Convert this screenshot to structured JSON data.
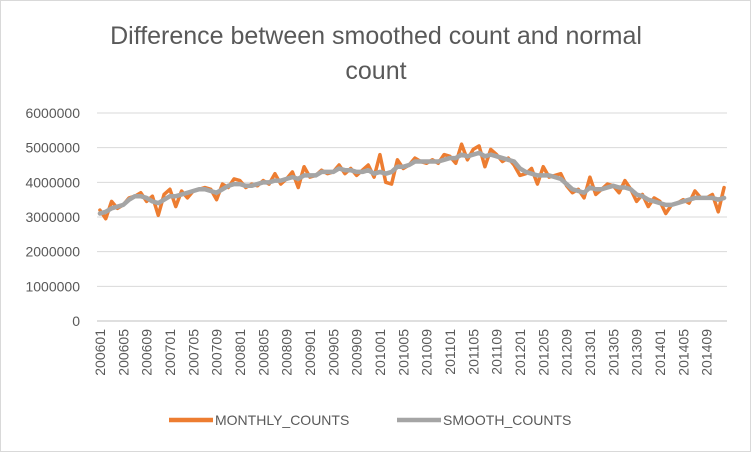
{
  "chart_data": {
    "type": "line",
    "title": "Difference between smoothed count and normal count",
    "title_lines": [
      "Difference between smoothed count and normal",
      "count"
    ],
    "xlabel": "",
    "ylabel": "",
    "ylim": [
      0,
      6000000
    ],
    "yticks": [
      0,
      1000000,
      2000000,
      3000000,
      4000000,
      5000000,
      6000000
    ],
    "ytick_labels": [
      "0",
      "1000000",
      "2000000",
      "3000000",
      "4000000",
      "5000000",
      "6000000"
    ],
    "x": [
      "200601",
      "200602",
      "200603",
      "200604",
      "200605",
      "200606",
      "200607",
      "200608",
      "200609",
      "200610",
      "200611",
      "200612",
      "200701",
      "200702",
      "200703",
      "200704",
      "200705",
      "200706",
      "200707",
      "200708",
      "200709",
      "200710",
      "200711",
      "200712",
      "200801",
      "200802",
      "200803",
      "200804",
      "200805",
      "200806",
      "200807",
      "200808",
      "200809",
      "200810",
      "200811",
      "200812",
      "200901",
      "200902",
      "200903",
      "200904",
      "200905",
      "200906",
      "200907",
      "200908",
      "200909",
      "200910",
      "200911",
      "200912",
      "201001",
      "201002",
      "201003",
      "201004",
      "201005",
      "201006",
      "201007",
      "201008",
      "201009",
      "201010",
      "201011",
      "201012",
      "201101",
      "201102",
      "201103",
      "201104",
      "201105",
      "201106",
      "201107",
      "201108",
      "201109",
      "201110",
      "201111",
      "201112",
      "201201",
      "201202",
      "201203",
      "201204",
      "201205",
      "201206",
      "201207",
      "201208",
      "201209",
      "201210",
      "201211",
      "201212",
      "201301",
      "201302",
      "201303",
      "201304",
      "201305",
      "201306",
      "201307",
      "201308",
      "201309",
      "201310",
      "201311",
      "201312",
      "201401",
      "201402",
      "201403",
      "201404",
      "201405",
      "201406",
      "201407",
      "201408",
      "201409",
      "201410",
      "201411",
      "201412"
    ],
    "x_tick_labels": [
      "200601",
      "200605",
      "200609",
      "200701",
      "200705",
      "200709",
      "200801",
      "200805",
      "200809",
      "200901",
      "200905",
      "200909",
      "201001",
      "201005",
      "201009",
      "201101",
      "201105",
      "201109",
      "201201",
      "201205",
      "201209",
      "201301",
      "201305",
      "201309",
      "201401",
      "201405",
      "201409"
    ],
    "grid": "horizontal",
    "legend_position": "bottom",
    "series": [
      {
        "name": "MONTHLY_COUNTS",
        "color": "#ed7d31",
        "values": [
          3200000,
          2950000,
          3450000,
          3250000,
          3350000,
          3550000,
          3600000,
          3700000,
          3450000,
          3600000,
          3050000,
          3650000,
          3800000,
          3300000,
          3750000,
          3550000,
          3750000,
          3800000,
          3850000,
          3800000,
          3500000,
          3950000,
          3850000,
          4100000,
          4050000,
          3850000,
          3950000,
          3900000,
          4050000,
          3950000,
          4250000,
          3950000,
          4100000,
          4300000,
          3850000,
          4450000,
          4150000,
          4200000,
          4350000,
          4250000,
          4300000,
          4500000,
          4250000,
          4400000,
          4200000,
          4350000,
          4500000,
          4150000,
          4800000,
          4000000,
          3950000,
          4650000,
          4400000,
          4500000,
          4700000,
          4600000,
          4550000,
          4650000,
          4550000,
          4800000,
          4750000,
          4550000,
          5100000,
          4650000,
          4950000,
          5050000,
          4450000,
          4950000,
          4800000,
          4600000,
          4700000,
          4500000,
          4200000,
          4250000,
          4400000,
          3950000,
          4450000,
          4150000,
          4200000,
          4250000,
          3900000,
          3700000,
          3800000,
          3550000,
          4150000,
          3650000,
          3800000,
          3950000,
          3900000,
          3700000,
          4050000,
          3800000,
          3450000,
          3650000,
          3300000,
          3550000,
          3450000,
          3100000,
          3350000,
          3400000,
          3500000,
          3400000,
          3750000,
          3550000,
          3550000,
          3650000,
          3150000,
          3850000
        ]
      },
      {
        "name": "SMOOTH_COUNTS",
        "color": "#a5a5a5",
        "values": [
          3100000,
          3150000,
          3250000,
          3300000,
          3350000,
          3500000,
          3600000,
          3600000,
          3550000,
          3450000,
          3400000,
          3500000,
          3600000,
          3600000,
          3650000,
          3700000,
          3750000,
          3800000,
          3800000,
          3750000,
          3700000,
          3800000,
          3900000,
          3950000,
          3950000,
          3900000,
          3900000,
          3950000,
          4000000,
          4000000,
          4050000,
          4050000,
          4100000,
          4150000,
          4100000,
          4200000,
          4200000,
          4200000,
          4300000,
          4300000,
          4300000,
          4400000,
          4350000,
          4350000,
          4300000,
          4300000,
          4350000,
          4250000,
          4300000,
          4250000,
          4300000,
          4450000,
          4450000,
          4500000,
          4600000,
          4600000,
          4600000,
          4600000,
          4600000,
          4650000,
          4700000,
          4700000,
          4800000,
          4750000,
          4800000,
          4850000,
          4750000,
          4800000,
          4750000,
          4700000,
          4650000,
          4600000,
          4400000,
          4300000,
          4250000,
          4200000,
          4200000,
          4200000,
          4150000,
          4100000,
          3950000,
          3800000,
          3750000,
          3700000,
          3850000,
          3800000,
          3800000,
          3850000,
          3900000,
          3850000,
          3850000,
          3800000,
          3650000,
          3600000,
          3500000,
          3450000,
          3400000,
          3350000,
          3350000,
          3400000,
          3450000,
          3500000,
          3550000,
          3550000,
          3550000,
          3550000,
          3500000,
          3550000
        ]
      }
    ]
  }
}
